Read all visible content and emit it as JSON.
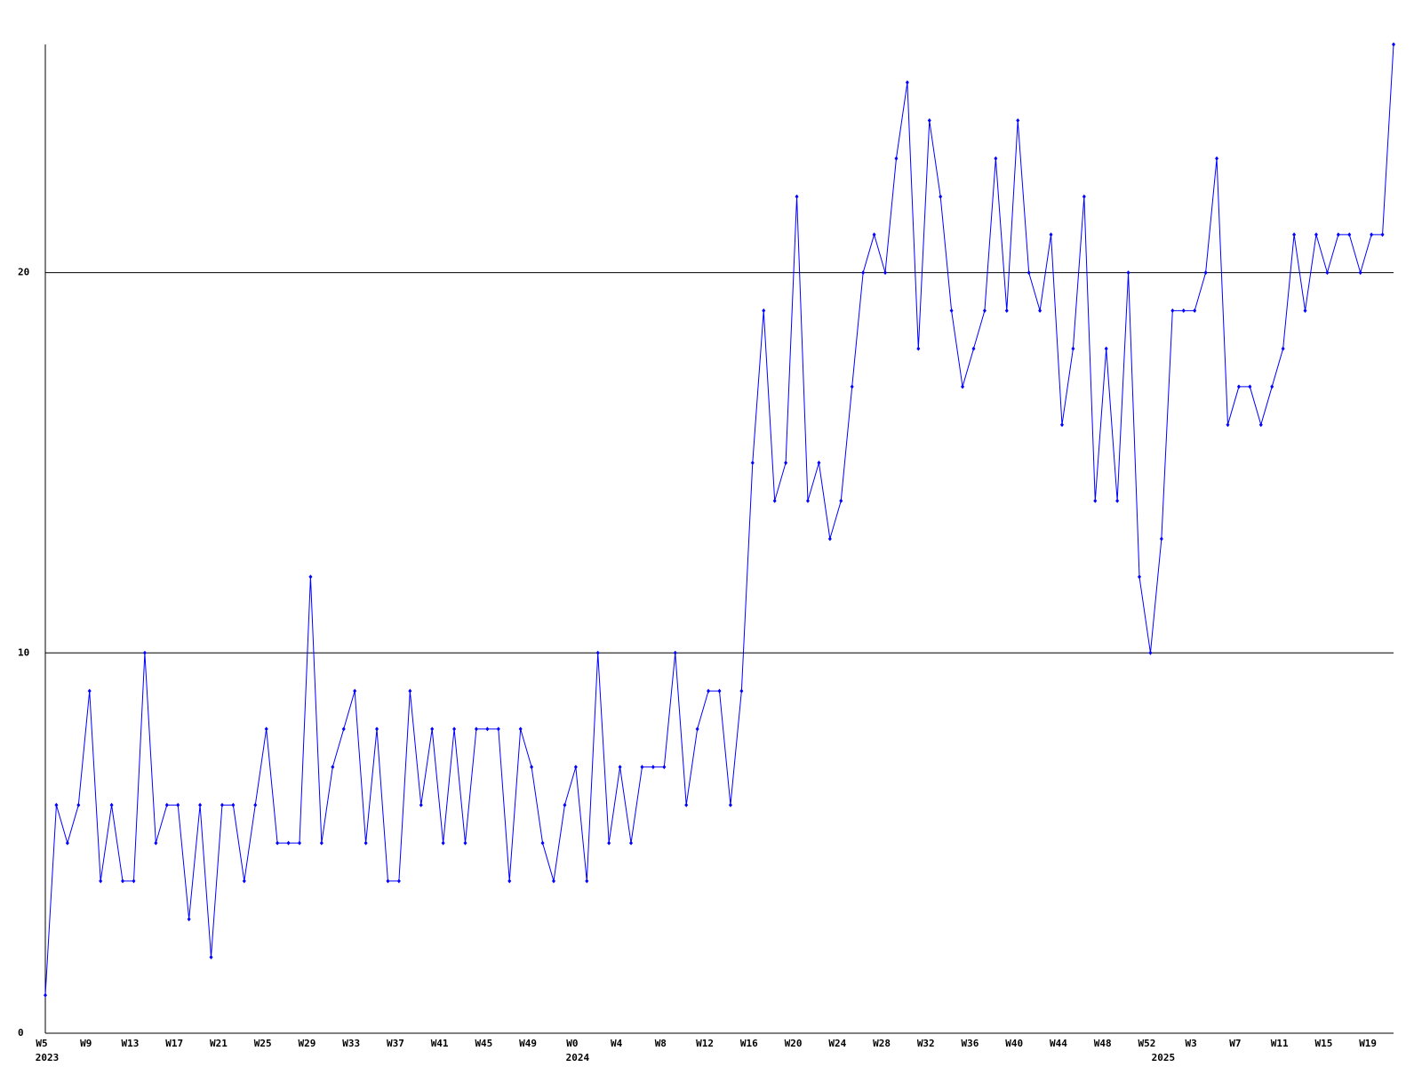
{
  "chart_data": {
    "type": "line",
    "categories": [
      "W5",
      null,
      null,
      null,
      "W9",
      null,
      null,
      null,
      "W13",
      null,
      null,
      null,
      "W17",
      null,
      null,
      null,
      "W21",
      null,
      null,
      null,
      "W25",
      null,
      null,
      null,
      "W29",
      null,
      null,
      null,
      "W33",
      null,
      null,
      null,
      "W37",
      null,
      null,
      null,
      "W41",
      null,
      null,
      null,
      "W45",
      null,
      null,
      null,
      "W49",
      null,
      null,
      null,
      "W0",
      null,
      null,
      null,
      "W4",
      null,
      null,
      null,
      "W8",
      null,
      null,
      null,
      "W12",
      null,
      null,
      null,
      "W16",
      null,
      null,
      null,
      "W20",
      null,
      null,
      null,
      "W24",
      null,
      null,
      null,
      "W28",
      null,
      null,
      null,
      "W32",
      null,
      null,
      null,
      "W36",
      null,
      null,
      null,
      "W40",
      null,
      null,
      null,
      "W44",
      null,
      null,
      null,
      "W48",
      null,
      null,
      null,
      "W52",
      null,
      null,
      null,
      "W3",
      null,
      null,
      null,
      "W7",
      null,
      null,
      null,
      "W11",
      null,
      null,
      null,
      "W15",
      null,
      null,
      null,
      "W19",
      null,
      null
    ],
    "category_groups": [
      "2023",
      null,
      null,
      null,
      null,
      null,
      null,
      null,
      null,
      null,
      null,
      null,
      null,
      null,
      null,
      null,
      null,
      null,
      null,
      null,
      null,
      null,
      null,
      null,
      null,
      null,
      null,
      null,
      null,
      null,
      null,
      null,
      null,
      null,
      null,
      null,
      null,
      null,
      null,
      null,
      null,
      null,
      null,
      null,
      null,
      null,
      null,
      null,
      "2024",
      null,
      null,
      null,
      null,
      null,
      null,
      null,
      null,
      null,
      null,
      null,
      null,
      null,
      null,
      null,
      null,
      null,
      null,
      null,
      null,
      null,
      null,
      null,
      null,
      null,
      null,
      null,
      null,
      null,
      null,
      null,
      null,
      null,
      null,
      null,
      null,
      null,
      null,
      null,
      null,
      null,
      null,
      null,
      null,
      null,
      null,
      null,
      null,
      null,
      null,
      null,
      null,
      "2025",
      null,
      null,
      null,
      null,
      null,
      null,
      null,
      null,
      null,
      null,
      null,
      null,
      null,
      null,
      null,
      null,
      null,
      null,
      null,
      null,
      null
    ],
    "series": [
      {
        "color": "#0000ff",
        "values": [
          1,
          6,
          5,
          6,
          9,
          4,
          6,
          4,
          4,
          10,
          5,
          6,
          6,
          3,
          6,
          2,
          6,
          6,
          4,
          6,
          8,
          5,
          5,
          5,
          12,
          5,
          7,
          8,
          9,
          5,
          8,
          4,
          4,
          9,
          6,
          8,
          5,
          8,
          5,
          8,
          8,
          8,
          4,
          8,
          7,
          5,
          4,
          6,
          7,
          4,
          10,
          5,
          7,
          5,
          7,
          7,
          7,
          10,
          6,
          8,
          9,
          9,
          6,
          9,
          15,
          19,
          14,
          15,
          22,
          14,
          15,
          13,
          14,
          17,
          20,
          21,
          20,
          23,
          25,
          18,
          24,
          22,
          19,
          17,
          18,
          19,
          23,
          19,
          24,
          20,
          19,
          21,
          16,
          18,
          22,
          14,
          18,
          14,
          20,
          12,
          10,
          13,
          19,
          19,
          19,
          20,
          23,
          16,
          17,
          17,
          16,
          17,
          18,
          21,
          19,
          21,
          20,
          21,
          21,
          20,
          21,
          21,
          26
        ]
      }
    ],
    "ylim": [
      0,
      26
    ],
    "yticks": [
      0,
      10,
      20
    ],
    "grid": true
  }
}
